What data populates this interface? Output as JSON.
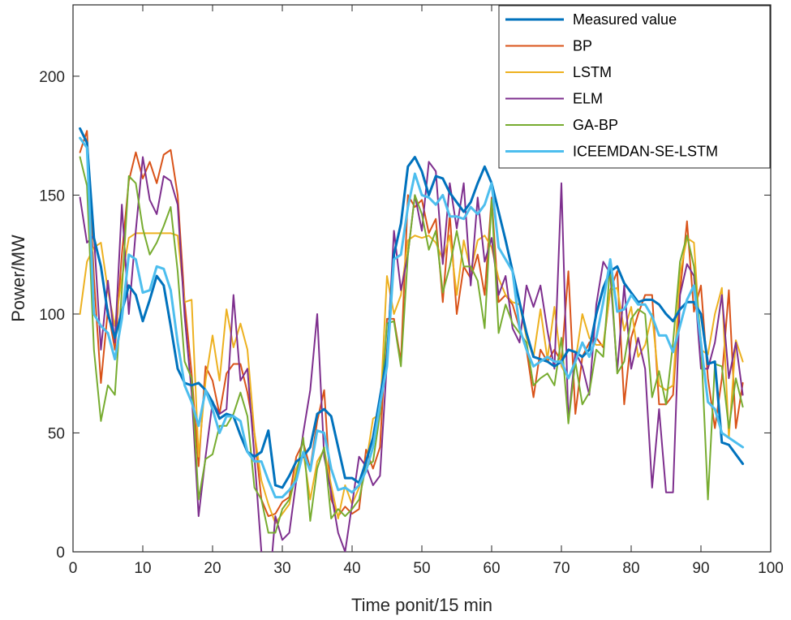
{
  "chart_data": {
    "type": "line",
    "title": "",
    "xlabel": "Time ponit/15 min",
    "ylabel": "Power/MW",
    "xlim": [
      0,
      100
    ],
    "ylim": [
      0,
      230
    ],
    "xticks": [
      0,
      10,
      20,
      30,
      40,
      50,
      60,
      70,
      80,
      90,
      100
    ],
    "yticks": [
      0,
      50,
      100,
      150,
      200
    ],
    "grid": false,
    "legend_position": "top-right",
    "x": [
      1,
      2,
      3,
      4,
      5,
      6,
      7,
      8,
      9,
      10,
      11,
      12,
      13,
      14,
      15,
      16,
      17,
      18,
      19,
      20,
      21,
      22,
      23,
      24,
      25,
      26,
      27,
      28,
      29,
      30,
      31,
      32,
      33,
      34,
      35,
      36,
      37,
      38,
      39,
      40,
      41,
      42,
      43,
      44,
      45,
      46,
      47,
      48,
      49,
      50,
      51,
      52,
      53,
      54,
      55,
      56,
      57,
      58,
      59,
      60,
      61,
      62,
      63,
      64,
      65,
      66,
      67,
      68,
      69,
      70,
      71,
      72,
      73,
      74,
      75,
      76,
      77,
      78,
      79,
      80,
      81,
      82,
      83,
      84,
      85,
      86,
      87,
      88,
      89,
      90,
      91,
      92,
      93,
      94,
      95,
      96
    ],
    "series": [
      {
        "name": "Measured value",
        "color": "#0072BD",
        "stroke": 3,
        "values": [
          178,
          172,
          132,
          120,
          100,
          90,
          101,
          112,
          108,
          97,
          106,
          116,
          112,
          95,
          77,
          71,
          70,
          71,
          68,
          63,
          56,
          58,
          57,
          49,
          42,
          40,
          42,
          51,
          28,
          27,
          32,
          38,
          40,
          44,
          58,
          60,
          57,
          44,
          31,
          31,
          29,
          38,
          48,
          65,
          82,
          125,
          138,
          162,
          166,
          160,
          150,
          158,
          157,
          151,
          147,
          143,
          147,
          155,
          162,
          155,
          143,
          131,
          118,
          105,
          92,
          82,
          81,
          80,
          78,
          80,
          85,
          84,
          82,
          85,
          100,
          111,
          118,
          120,
          113,
          109,
          105,
          106,
          106,
          104,
          100,
          97,
          102,
          105,
          105,
          100,
          79,
          80,
          46,
          45,
          41,
          37
        ]
      },
      {
        "name": "BP",
        "color": "#D95319",
        "stroke": 2,
        "values": [
          168,
          177,
          115,
          71,
          102,
          85,
          125,
          156,
          168,
          157,
          164,
          155,
          167,
          169,
          150,
          105,
          75,
          36,
          78,
          72,
          58,
          75,
          79,
          79,
          67,
          50,
          22,
          15,
          16,
          21,
          23,
          40,
          46,
          35,
          55,
          68,
          22,
          15,
          19,
          16,
          18,
          43,
          35,
          44,
          98,
          98,
          80,
          150,
          145,
          148,
          134,
          140,
          105,
          142,
          100,
          120,
          115,
          125,
          108,
          149,
          105,
          108,
          104,
          94,
          85,
          65,
          85,
          80,
          85,
          80,
          118,
          58,
          82,
          88,
          90,
          86,
          110,
          118,
          62,
          90,
          100,
          108,
          108,
          62,
          62,
          66,
          109,
          139,
          101,
          112,
          73,
          52,
          73,
          110,
          52,
          71
        ]
      },
      {
        "name": "LSTM",
        "color": "#EDB120",
        "stroke": 2,
        "values": [
          100,
          122,
          128,
          130,
          110,
          95,
          115,
          132,
          134,
          134,
          134,
          134,
          134,
          134,
          133,
          105,
          106,
          40,
          72,
          91,
          72,
          102,
          86,
          96,
          85,
          50,
          30,
          20,
          12,
          16,
          20,
          35,
          42,
          22,
          38,
          43,
          28,
          14,
          28,
          20,
          27,
          37,
          56,
          58,
          116,
          100,
          108,
          131,
          133,
          132,
          133,
          130,
          123,
          133,
          108,
          131,
          118,
          131,
          133,
          128,
          115,
          108,
          105,
          104,
          90,
          82,
          102,
          81,
          103,
          78,
          73,
          80,
          100,
          90,
          87,
          87,
          110,
          111,
          93,
          103,
          82,
          87,
          100,
          70,
          68,
          70,
          117,
          132,
          130,
          85,
          83,
          100,
          111,
          48,
          89,
          80
        ]
      },
      {
        "name": "ELM",
        "color": "#7E2F8E",
        "stroke": 2,
        "values": [
          149,
          130,
          133,
          85,
          114,
          88,
          146,
          100,
          135,
          166,
          148,
          142,
          158,
          156,
          146,
          99,
          67,
          15,
          40,
          63,
          58,
          60,
          108,
          72,
          77,
          40,
          0,
          -20,
          15,
          5,
          8,
          30,
          50,
          68,
          100,
          40,
          25,
          8,
          0,
          20,
          40,
          36,
          28,
          32,
          80,
          135,
          110,
          125,
          150,
          135,
          164,
          160,
          121,
          155,
          136,
          155,
          112,
          149,
          122,
          132,
          108,
          116,
          94,
          88,
          112,
          103,
          112,
          93,
          77,
          155,
          55,
          84,
          78,
          66,
          104,
          122,
          117,
          76,
          112,
          77,
          90,
          77,
          27,
          60,
          25,
          25,
          108,
          121,
          116,
          77,
          77,
          88,
          108,
          73,
          88,
          66
        ]
      },
      {
        "name": "GA-BP",
        "color": "#77AC30",
        "stroke": 2,
        "values": [
          166,
          154,
          85,
          55,
          70,
          66,
          110,
          158,
          155,
          136,
          125,
          130,
          137,
          145,
          118,
          80,
          73,
          22,
          39,
          41,
          53,
          53,
          58,
          67,
          57,
          27,
          22,
          8,
          8,
          18,
          22,
          32,
          48,
          13,
          35,
          44,
          14,
          18,
          15,
          18,
          22,
          36,
          38,
          58,
          96,
          97,
          78,
          125,
          150,
          142,
          127,
          135,
          109,
          120,
          135,
          120,
          120,
          114,
          94,
          148,
          92,
          104,
          96,
          92,
          88,
          70,
          73,
          75,
          70,
          90,
          54,
          80,
          62,
          67,
          85,
          82,
          121,
          75,
          80,
          98,
          102,
          100,
          65,
          76,
          62,
          88,
          122,
          133,
          120,
          89,
          22,
          79,
          78,
          52,
          73,
          61
        ]
      },
      {
        "name": "ICEEMDAN-SE-LSTM",
        "color": "#4DBEEE",
        "stroke": 3,
        "values": [
          174,
          170,
          100,
          95,
          92,
          81,
          98,
          125,
          123,
          109,
          110,
          120,
          119,
          110,
          88,
          70,
          63,
          53,
          68,
          60,
          50,
          57,
          57,
          55,
          42,
          38,
          38,
          30,
          23,
          23,
          26,
          30,
          42,
          34,
          51,
          50,
          35,
          26,
          27,
          25,
          28,
          34,
          44,
          62,
          78,
          123,
          125,
          145,
          159,
          150,
          149,
          146,
          150,
          141,
          141,
          140,
          145,
          142,
          146,
          155,
          128,
          123,
          118,
          94,
          85,
          78,
          80,
          82,
          80,
          80,
          73,
          80,
          88,
          82,
          90,
          105,
          123,
          101,
          102,
          108,
          104,
          104,
          99,
          91,
          91,
          84,
          95,
          106,
          112,
          88,
          63,
          60,
          50,
          48,
          46,
          44
        ]
      }
    ]
  }
}
